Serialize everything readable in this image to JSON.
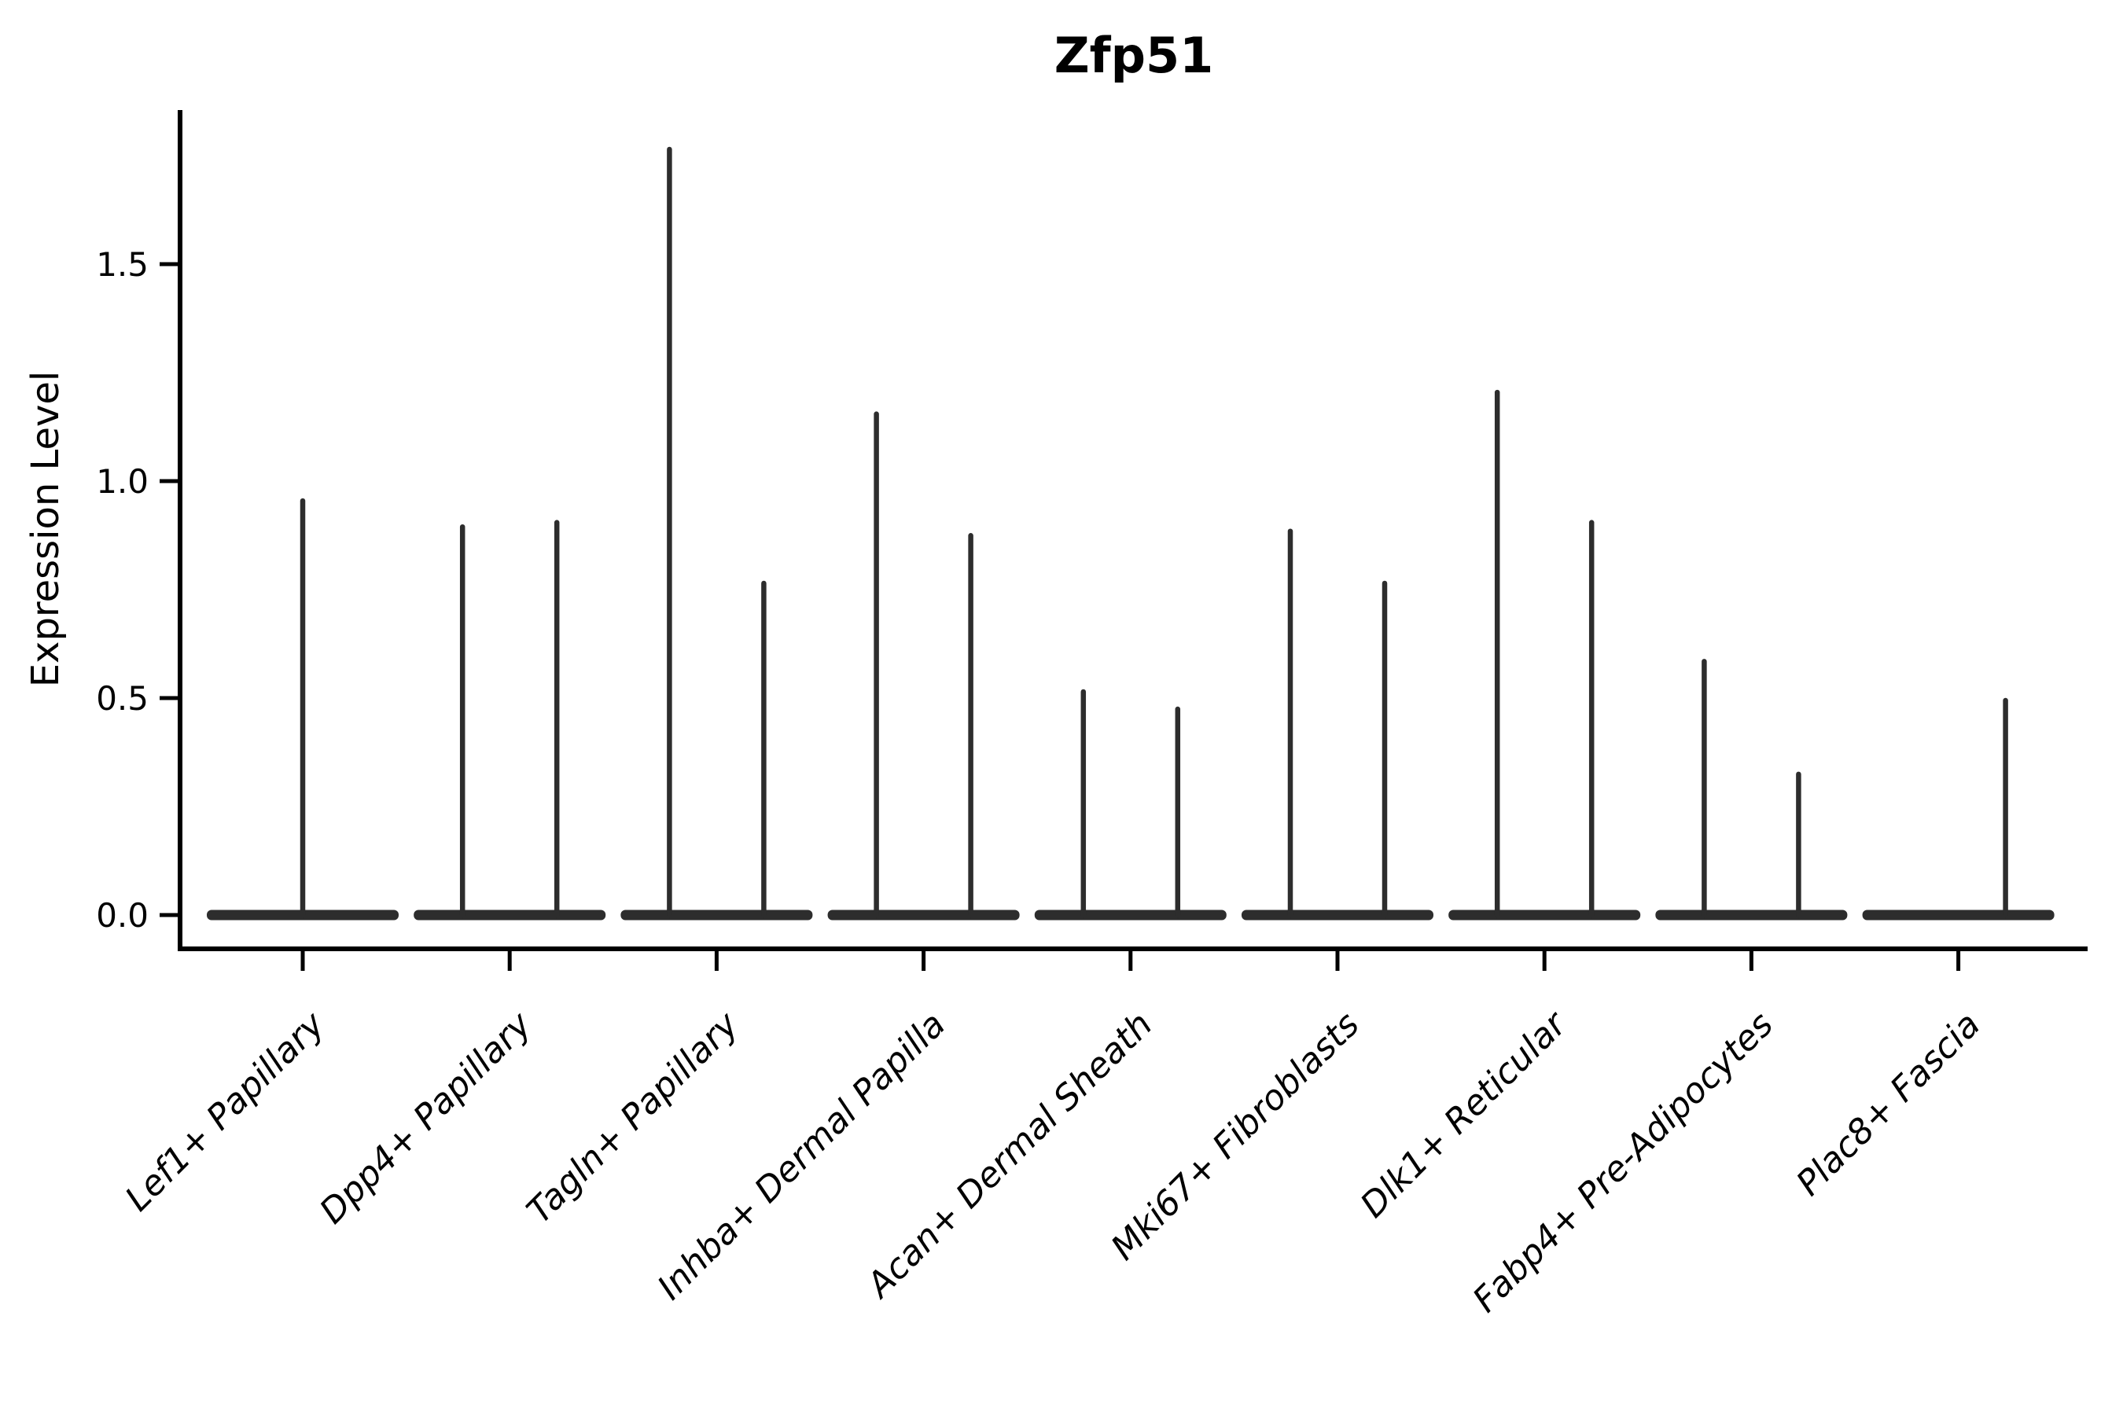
{
  "page": {
    "background": "#ffffff"
  },
  "chart_data": {
    "type": "violin",
    "title": "Zfp51",
    "ylabel": "Expression Level",
    "xlabel": "",
    "grid": false,
    "legend": null,
    "yticks": [
      "0.0",
      "0.5",
      "1.0",
      "1.5"
    ],
    "ylim": [
      -0.08,
      1.86
    ],
    "categories": [
      "Lef1+ Papillary",
      "Dpp4+ Papillary",
      "Tagln+ Papillary",
      "Inhba+ Dermal Papilla",
      "Acan+ Dermal Sheath",
      "Mki67+ Fibroblasts",
      "Dlk1+ Reticular",
      "Fabp4+ Pre-Adipocytes",
      "Plac8+ Fascia"
    ],
    "violins": [
      {
        "category": "Lef1+ Papillary",
        "spikes": [
          {
            "offset": 0,
            "max": 0.96
          }
        ]
      },
      {
        "category": "Dpp4+ Papillary",
        "spikes": [
          {
            "offset": -60,
            "max": 0.9
          },
          {
            "offset": 60,
            "max": 0.91
          }
        ]
      },
      {
        "category": "Tagln+ Papillary",
        "spikes": [
          {
            "offset": -60,
            "max": 1.77
          },
          {
            "offset": 60,
            "max": 0.77
          }
        ]
      },
      {
        "category": "Inhba+ Dermal Papilla",
        "spikes": [
          {
            "offset": -60,
            "max": 1.16
          },
          {
            "offset": 60,
            "max": 0.88
          }
        ]
      },
      {
        "category": "Acan+ Dermal Sheath",
        "spikes": [
          {
            "offset": -60,
            "max": 0.52
          },
          {
            "offset": 60,
            "max": 0.48
          }
        ]
      },
      {
        "category": "Mki67+ Fibroblasts",
        "spikes": [
          {
            "offset": -60,
            "max": 0.89
          },
          {
            "offset": 60,
            "max": 0.77
          }
        ]
      },
      {
        "category": "Dlk1+ Reticular",
        "spikes": [
          {
            "offset": -60,
            "max": 1.21
          },
          {
            "offset": 60,
            "max": 0.91
          }
        ]
      },
      {
        "category": "Fabp4+ Pre-Adipocytes",
        "spikes": [
          {
            "offset": -60,
            "max": 0.59
          },
          {
            "offset": 60,
            "max": 0.33
          }
        ]
      },
      {
        "category": "Plac8+ Fascia",
        "spikes": [
          {
            "offset": 60,
            "max": 0.5
          }
        ]
      }
    ],
    "colors": {
      "violin": "#2d2d2d",
      "axis": "#000000",
      "text": "#000000",
      "background": "#ffffff"
    }
  }
}
